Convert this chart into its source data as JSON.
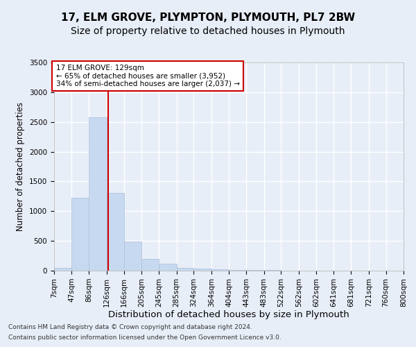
{
  "title": "17, ELM GROVE, PLYMPTON, PLYMOUTH, PL7 2BW",
  "subtitle": "Size of property relative to detached houses in Plymouth",
  "xlabel": "Distribution of detached houses by size in Plymouth",
  "ylabel": "Number of detached properties",
  "footer_line1": "Contains HM Land Registry data © Crown copyright and database right 2024.",
  "footer_line2": "Contains public sector information licensed under the Open Government Licence v3.0.",
  "annotation_line1": "17 ELM GROVE: 129sqm",
  "annotation_line2": "← 65% of detached houses are smaller (3,952)",
  "annotation_line3": "34% of semi-detached houses are larger (2,037) →",
  "bar_edges": [
    7,
    47,
    86,
    126,
    166,
    205,
    245,
    285,
    324,
    364,
    404,
    443,
    483,
    522,
    562,
    602,
    641,
    681,
    721,
    760,
    800
  ],
  "bar_heights": [
    50,
    1220,
    2580,
    1310,
    490,
    200,
    120,
    50,
    30,
    25,
    15,
    10,
    8,
    5,
    4,
    3,
    2,
    2,
    1,
    1
  ],
  "bar_color": "#c7d9f0",
  "bar_edge_color": "#a8bfd8",
  "vline_color": "#cc0000",
  "vline_x": 129,
  "ylim": [
    0,
    3500
  ],
  "yticks": [
    0,
    500,
    1000,
    1500,
    2000,
    2500,
    3000,
    3500
  ],
  "bg_color": "#e8eef8",
  "plot_bg_color": "#e8eef8",
  "grid_color": "#ffffff",
  "annotation_box_color": "#ffffff",
  "annotation_box_edge": "#cc0000",
  "title_fontsize": 11,
  "subtitle_fontsize": 10,
  "ylabel_fontsize": 8.5,
  "xlabel_fontsize": 9.5,
  "tick_fontsize": 7.5,
  "footer_fontsize": 6.5
}
